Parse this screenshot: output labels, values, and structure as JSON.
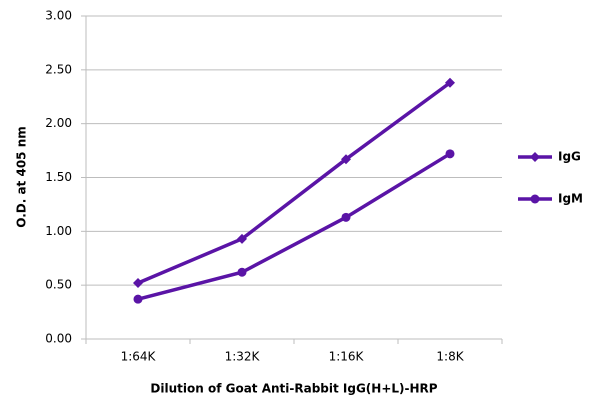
{
  "chart_data": {
    "type": "line",
    "x_label": "Dilution of Goat Anti-Rabbit IgG(H+L)-HRP",
    "y_label": "O.D. at 405 nm",
    "categories": [
      "1:64K",
      "1:32K",
      "1:16K",
      "1:8K"
    ],
    "series": [
      {
        "name": "IgG",
        "color": "#5a14a6",
        "marker": "diamond",
        "values": [
          0.52,
          0.93,
          1.67,
          2.38
        ]
      },
      {
        "name": "IgM",
        "color": "#5a14a6",
        "marker": "circle",
        "values": [
          0.37,
          0.62,
          1.13,
          1.72
        ]
      }
    ],
    "ylim": [
      0,
      3
    ],
    "yticks": [
      {
        "value": 0,
        "label": "0.00"
      },
      {
        "value": 0.5,
        "label": "0.50"
      },
      {
        "value": 1,
        "label": "1.00"
      },
      {
        "value": 1.5,
        "label": "1.50"
      },
      {
        "value": 2,
        "label": "2.00"
      },
      {
        "value": 2.5,
        "label": "2.50"
      },
      {
        "value": 3,
        "label": "3.00"
      }
    ],
    "grid": true,
    "legend": "right"
  }
}
